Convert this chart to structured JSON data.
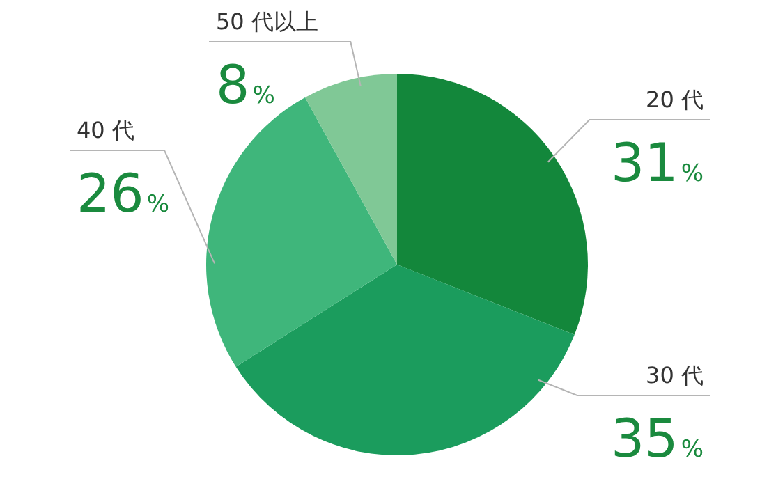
{
  "chart_data": {
    "type": "pie",
    "categories": [
      "20 代",
      "30 代",
      "40 代",
      "50 代以上"
    ],
    "values": [
      31,
      35,
      26,
      8
    ],
    "value_labels": [
      "31%",
      "35%",
      "26%",
      "8%"
    ],
    "colors": [
      "#13873b",
      "#1b9c5d",
      "#3fb67b",
      "#80c896"
    ]
  }
}
